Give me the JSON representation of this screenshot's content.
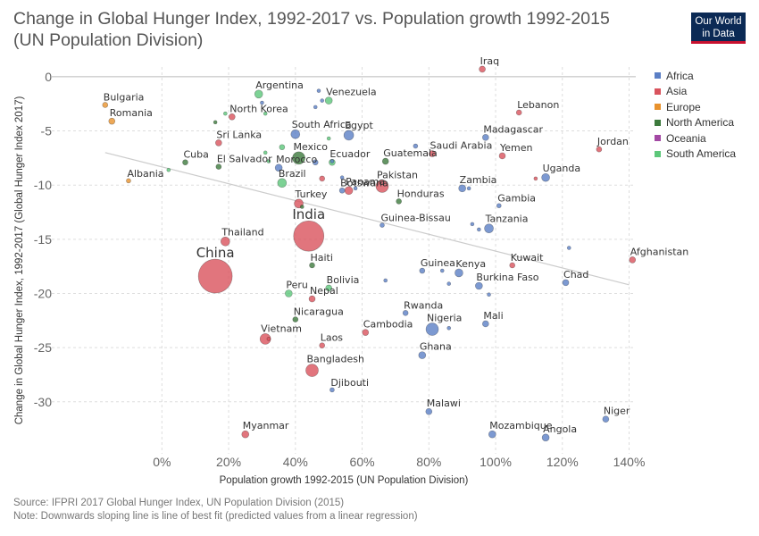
{
  "title": "Change in Global Hunger Index, 1992-2017 vs. Population growth 1992-2015 (UN Population Division)",
  "logo": {
    "line1": "Our World",
    "line2": "in Data",
    "bg": "#0b2a55",
    "accent": "#c8102e"
  },
  "legend": [
    {
      "label": "Africa",
      "color": "#5b7fc5"
    },
    {
      "label": "Asia",
      "color": "#d9535d"
    },
    {
      "label": "Europe",
      "color": "#e8922d"
    },
    {
      "label": "North America",
      "color": "#3d7a3d"
    },
    {
      "label": "Oceania",
      "color": "#a349a4"
    },
    {
      "label": "South America",
      "color": "#5dc77a"
    }
  ],
  "footer": {
    "source": "Source: IFPRI 2017 Global Hunger Index, UN Population Division (2015)",
    "note": "Note: Downwards sloping line is line of best fit (predicted values from a linear regression)"
  },
  "chart_data": {
    "type": "scatter",
    "xlabel": "Population growth 1992-2015 (UN Population Division)",
    "ylabel": "Change in Global Hunger Index, 1992-2017 (Global Hunger Index 2017)",
    "xlim": [
      -33,
      142
    ],
    "ylim": [
      -34.8,
      0.9
    ],
    "xticks": [
      0,
      20,
      40,
      60,
      80,
      100,
      120,
      140
    ],
    "xtick_labels": [
      "0%",
      "20%",
      "40%",
      "60%",
      "80%",
      "100%",
      "120%",
      "140%"
    ],
    "yticks": [
      0,
      -5,
      -10,
      -15,
      -20,
      -25,
      -30
    ],
    "ytick_labels": [
      "0",
      "-5",
      "-10",
      "-15",
      "-20",
      "-25",
      "-30"
    ],
    "grid": true,
    "legend_position": "right",
    "best_fit": {
      "x": [
        -17,
        140
      ],
      "y": [
        -7,
        -19.2
      ]
    },
    "points": [
      {
        "label": "Iraq",
        "x": 96,
        "y": 0.7,
        "continent": "Asia",
        "size": 3.5
      },
      {
        "label": "Bulgaria",
        "x": -17,
        "y": -2.6,
        "continent": "Europe",
        "size": 3
      },
      {
        "label": "Romania",
        "x": -15,
        "y": -4.1,
        "continent": "Europe",
        "size": 3.5
      },
      {
        "label": "Argentina",
        "x": 29,
        "y": -1.6,
        "continent": "South America",
        "size": 4.5
      },
      {
        "label": "Venezuela",
        "x": 50,
        "y": -2.2,
        "continent": "South America",
        "size": 4
      },
      {
        "label": "North Korea",
        "x": 21,
        "y": -3.7,
        "continent": "Asia",
        "size": 3.5
      },
      {
        "label": "Lebanon",
        "x": 107,
        "y": -3.3,
        "continent": "Asia",
        "size": 3
      },
      {
        "label": "South Africa",
        "x": 40,
        "y": -5.3,
        "continent": "Africa",
        "size": 5
      },
      {
        "label": "Egypt",
        "x": 56,
        "y": -5.4,
        "continent": "Africa",
        "size": 5.5
      },
      {
        "label": "Madagascar",
        "x": 97,
        "y": -5.6,
        "continent": "Africa",
        "size": 3.5
      },
      {
        "label": "Sri Lanka",
        "x": 17,
        "y": -6.1,
        "continent": "Asia",
        "size": 3.5
      },
      {
        "label": "Jordan",
        "x": 131,
        "y": -6.7,
        "continent": "Asia",
        "size": 3
      },
      {
        "label": "Saudi Arabia",
        "x": 81,
        "y": -7.1,
        "continent": "Asia",
        "size": 3.5
      },
      {
        "label": "Yemen",
        "x": 102,
        "y": -7.3,
        "continent": "Asia",
        "size": 3.5
      },
      {
        "label": "Cuba",
        "x": 7,
        "y": -7.9,
        "continent": "North America",
        "size": 3
      },
      {
        "label": "Mexico",
        "x": 41,
        "y": -7.5,
        "continent": "North America",
        "size": 7
      },
      {
        "label": "Ecuador",
        "x": 51,
        "y": -7.9,
        "continent": "South America",
        "size": 3.5
      },
      {
        "label": "Guatemala",
        "x": 67,
        "y": -7.8,
        "continent": "North America",
        "size": 3.5
      },
      {
        "label": "El Salvador",
        "x": 17,
        "y": -8.3,
        "continent": "North America",
        "size": 3
      },
      {
        "label": "Morocco",
        "x": 35,
        "y": -8.4,
        "continent": "Africa",
        "size": 4
      },
      {
        "label": "Uganda",
        "x": 115,
        "y": -9.3,
        "continent": "Africa",
        "size": 4.5
      },
      {
        "label": "Albania",
        "x": -10,
        "y": -9.6,
        "continent": "Europe",
        "size": 2.5
      },
      {
        "label": "Brazil",
        "x": 36,
        "y": -9.8,
        "continent": "South America",
        "size": 5
      },
      {
        "label": "Pakistan",
        "x": 66,
        "y": -10.1,
        "continent": "Asia",
        "size": 7
      },
      {
        "label": "Zambia",
        "x": 90,
        "y": -10.3,
        "continent": "Africa",
        "size": 4
      },
      {
        "label": "Botswana",
        "x": 54,
        "y": -10.5,
        "continent": "Africa",
        "size": 3
      },
      {
        "label": "Panama",
        "x": 56,
        "y": -10.5,
        "continent": "Asia",
        "size": 4.5
      },
      {
        "label": "Turkey",
        "x": 41,
        "y": -11.7,
        "continent": "Asia",
        "size": 5
      },
      {
        "label": "Honduras",
        "x": 71,
        "y": -11.5,
        "continent": "North America",
        "size": 3
      },
      {
        "label": "Gambia",
        "x": 101,
        "y": -11.9,
        "continent": "Africa",
        "size": 2.5
      },
      {
        "label": "India",
        "x": 44,
        "y": -14.7,
        "continent": "Asia",
        "size": 17
      },
      {
        "label": "Guinea-Bissau",
        "x": 66,
        "y": -13.7,
        "continent": "Africa",
        "size": 2.5
      },
      {
        "label": "Tanzania",
        "x": 98,
        "y": -14,
        "continent": "Africa",
        "size": 5
      },
      {
        "label": "Thailand",
        "x": 19,
        "y": -15.2,
        "continent": "Asia",
        "size": 5
      },
      {
        "label": "Afghanistan",
        "x": 141,
        "y": -16.9,
        "continent": "Asia",
        "size": 3.5
      },
      {
        "label": "Kuwait",
        "x": 105,
        "y": -17.4,
        "continent": "Asia",
        "size": 3
      },
      {
        "label": "Haiti",
        "x": 45,
        "y": -17.4,
        "continent": "North America",
        "size": 3
      },
      {
        "label": "China",
        "x": 16,
        "y": -18.4,
        "continent": "Asia",
        "size": 19
      },
      {
        "label": "Guinea",
        "x": 78,
        "y": -17.9,
        "continent": "Africa",
        "size": 3
      },
      {
        "label": "Kenya",
        "x": 89,
        "y": -18.1,
        "continent": "Africa",
        "size": 4.5
      },
      {
        "label": "Chad",
        "x": 121,
        "y": -19,
        "continent": "Africa",
        "size": 3.5
      },
      {
        "label": "Burkina Faso",
        "x": 95,
        "y": -19.3,
        "continent": "Africa",
        "size": 4
      },
      {
        "label": "Peru",
        "x": 38,
        "y": -20,
        "continent": "South America",
        "size": 4
      },
      {
        "label": "Bolivia",
        "x": 50,
        "y": -19.5,
        "continent": "South America",
        "size": 3.5
      },
      {
        "label": "Nepal",
        "x": 45,
        "y": -20.5,
        "continent": "Asia",
        "size": 3.5
      },
      {
        "label": "Rwanda",
        "x": 73,
        "y": -21.8,
        "continent": "Africa",
        "size": 3
      },
      {
        "label": "Nicaragua",
        "x": 40,
        "y": -22.4,
        "continent": "North America",
        "size": 3
      },
      {
        "label": "Mali",
        "x": 97,
        "y": -22.8,
        "continent": "Africa",
        "size": 3.5
      },
      {
        "label": "Nigeria",
        "x": 81,
        "y": -23.3,
        "continent": "Africa",
        "size": 7
      },
      {
        "label": "Cambodia",
        "x": 61,
        "y": -23.6,
        "continent": "Asia",
        "size": 3.5
      },
      {
        "label": "Vietnam",
        "x": 31,
        "y": -24.2,
        "continent": "Asia",
        "size": 6
      },
      {
        "label": "Laos",
        "x": 48,
        "y": -24.8,
        "continent": "Asia",
        "size": 3
      },
      {
        "label": "Ghana",
        "x": 78,
        "y": -25.7,
        "continent": "Africa",
        "size": 4
      },
      {
        "label": "Bangladesh",
        "x": 45,
        "y": -27.1,
        "continent": "Asia",
        "size": 7
      },
      {
        "label": "Djibouti",
        "x": 51,
        "y": -28.9,
        "continent": "Africa",
        "size": 2.5
      },
      {
        "label": "Malawi",
        "x": 80,
        "y": -30.9,
        "continent": "Africa",
        "size": 3.5
      },
      {
        "label": "Niger",
        "x": 133,
        "y": -31.6,
        "continent": "Africa",
        "size": 3.5
      },
      {
        "label": "Myanmar",
        "x": 25,
        "y": -33,
        "continent": "Asia",
        "size": 4
      },
      {
        "label": "Mozambique",
        "x": 99,
        "y": -33,
        "continent": "Africa",
        "size": 4
      },
      {
        "label": "Angola",
        "x": 115,
        "y": -33.3,
        "continent": "Africa",
        "size": 4
      },
      {
        "label": "",
        "x": 47,
        "y": -1.3,
        "continent": "Africa",
        "size": 2
      },
      {
        "label": "",
        "x": 48,
        "y": -2.2,
        "continent": "Africa",
        "size": 2
      },
      {
        "label": "",
        "x": 46,
        "y": -2.8,
        "continent": "Africa",
        "size": 2
      },
      {
        "label": "",
        "x": 30,
        "y": -2.4,
        "continent": "Africa",
        "size": 2
      },
      {
        "label": "",
        "x": 31,
        "y": -3.4,
        "continent": "South America",
        "size": 2
      },
      {
        "label": "",
        "x": 16,
        "y": -4.2,
        "continent": "North America",
        "size": 2
      },
      {
        "label": "",
        "x": 19,
        "y": -3.4,
        "continent": "South America",
        "size": 2
      },
      {
        "label": "",
        "x": 50,
        "y": -5.7,
        "continent": "South America",
        "size": 2
      },
      {
        "label": "",
        "x": 36,
        "y": -6.5,
        "continent": "South America",
        "size": 3
      },
      {
        "label": "",
        "x": 46,
        "y": -7.9,
        "continent": "Africa",
        "size": 3
      },
      {
        "label": "",
        "x": 76,
        "y": -6.4,
        "continent": "Africa",
        "size": 2.5
      },
      {
        "label": "",
        "x": 31,
        "y": -7,
        "continent": "South America",
        "size": 2
      },
      {
        "label": "",
        "x": 54,
        "y": -9.3,
        "continent": "Africa",
        "size": 2
      },
      {
        "label": "",
        "x": 32,
        "y": -7.8,
        "continent": "South America",
        "size": 2
      },
      {
        "label": "",
        "x": 51,
        "y": -7.8,
        "continent": "Africa",
        "size": 2
      },
      {
        "label": "",
        "x": 2,
        "y": -8.6,
        "continent": "South America",
        "size": 2
      },
      {
        "label": "",
        "x": 48,
        "y": -9.4,
        "continent": "Asia",
        "size": 3
      },
      {
        "label": "",
        "x": 42,
        "y": -12,
        "continent": "North America",
        "size": 2
      },
      {
        "label": "",
        "x": 58,
        "y": -10.3,
        "continent": "Africa",
        "size": 2
      },
      {
        "label": "",
        "x": 92,
        "y": -10.3,
        "continent": "Africa",
        "size": 2
      },
      {
        "label": "",
        "x": 112,
        "y": -9.4,
        "continent": "Asia",
        "size": 2
      },
      {
        "label": "",
        "x": 93,
        "y": -13.6,
        "continent": "Africa",
        "size": 2
      },
      {
        "label": "",
        "x": 95,
        "y": -14.1,
        "continent": "Africa",
        "size": 2
      },
      {
        "label": "",
        "x": 122,
        "y": -15.8,
        "continent": "Africa",
        "size": 2
      },
      {
        "label": "",
        "x": 84,
        "y": -17.9,
        "continent": "Africa",
        "size": 2
      },
      {
        "label": "",
        "x": 86,
        "y": -19.1,
        "continent": "Africa",
        "size": 2
      },
      {
        "label": "",
        "x": 67,
        "y": -18.8,
        "continent": "Africa",
        "size": 2
      },
      {
        "label": "",
        "x": 98,
        "y": -20.1,
        "continent": "Africa",
        "size": 2
      },
      {
        "label": "",
        "x": 86,
        "y": -23.2,
        "continent": "Africa",
        "size": 2
      },
      {
        "label": "",
        "x": 32,
        "y": -24.2,
        "continent": "Asia",
        "size": 2
      }
    ]
  }
}
